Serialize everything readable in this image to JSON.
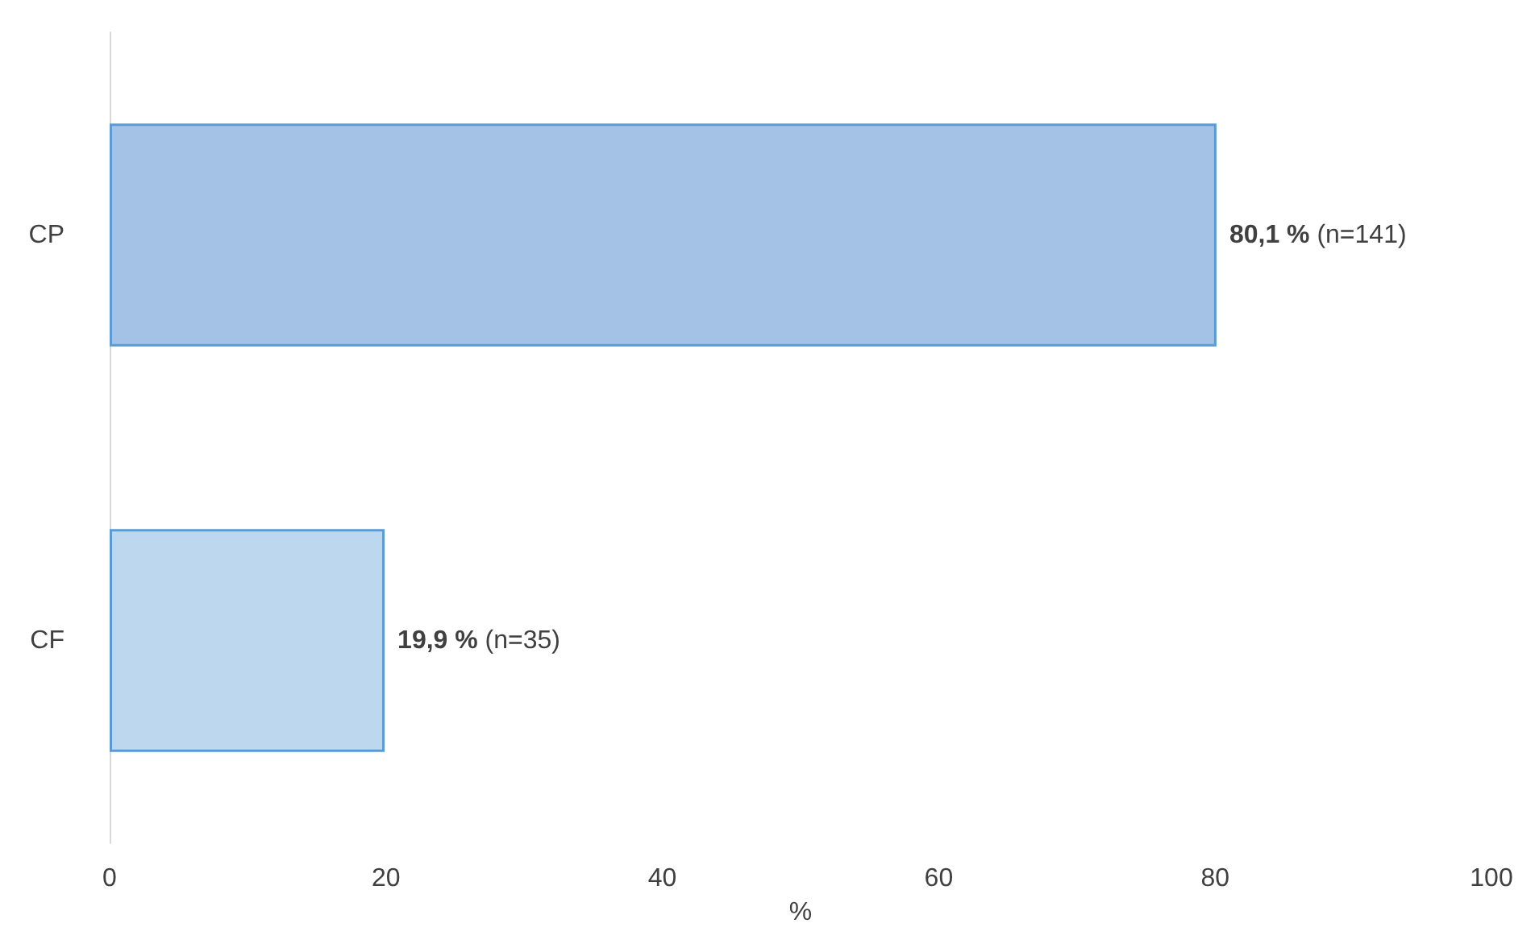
{
  "chart_data": {
    "type": "bar",
    "orientation": "horizontal",
    "categories": [
      "CP",
      "CF"
    ],
    "values": [
      80.1,
      19.9
    ],
    "colors": [
      "#a4c2e6",
      "#bdd7ee"
    ],
    "value_labels": [
      "80,1 % (n=141)",
      "19,9 % (n=35)"
    ],
    "xlabel": "%",
    "xlim": [
      0,
      100
    ],
    "xticks": [
      0,
      20,
      40,
      60,
      80,
      100
    ],
    "grid": false
  }
}
